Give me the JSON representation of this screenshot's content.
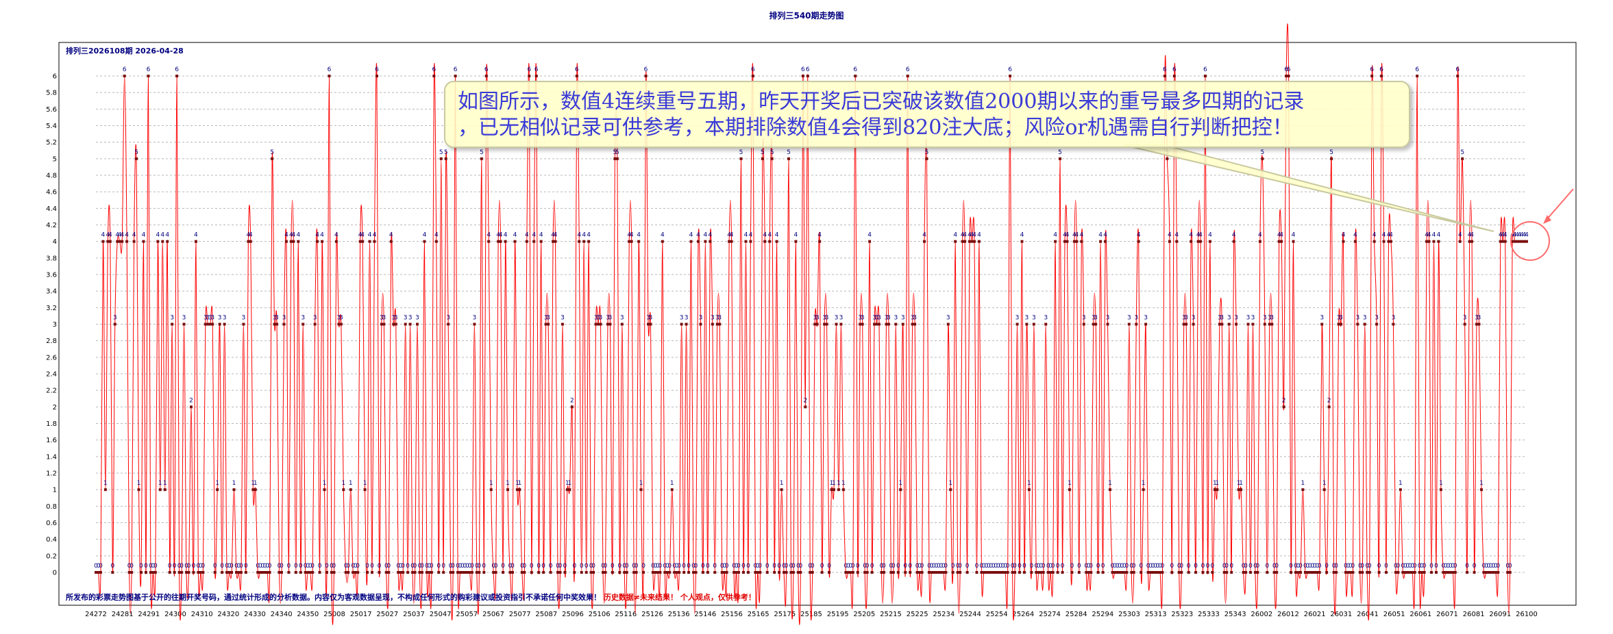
{
  "header": {
    "title": "排列三540期走势图",
    "subtitle": "排列三2026108期   2026-04-28"
  },
  "callout": {
    "line1": "如图所示，数值4连续重号五期，昨天开奖后已突破该数值2000期以来的重号最多四期的记录",
    "line2": "，已无相似记录可供参考，本期排除数值4会得到820注大底；风险or机遇需自行判断把控！"
  },
  "footer": {
    "disclaimer_blue": "所发布的彩票走势图基于公开的往期开奖号码，通过统计形成的分析数据。内容仅为客观数据呈现，不构成任何形式的购彩建议或投资指引不承诺任何中奖效果！",
    "disclaimer_red": "历史数据≠未来结果！ 个人观点，仅供参考！"
  },
  "colors": {
    "line": "#ff0000",
    "marker": "#7a1010",
    "value_label": "#000080",
    "highlight_circle": "#ff6a6a",
    "grid": "#b8b8b8"
  },
  "chart_data": {
    "type": "line",
    "title": "排列三540期走势图",
    "xlabel": "",
    "ylabel": "",
    "ylim": [
      0,
      6
    ],
    "yticks": [
      0,
      0.2,
      0.4,
      0.6,
      0.8,
      1,
      1.2,
      1.4,
      1.6,
      1.8,
      2,
      2.2,
      2.4,
      2.6,
      2.8,
      3,
      3.2,
      3.4,
      3.6,
      3.8,
      4,
      4.2,
      4.4,
      4.6,
      4.8,
      5,
      5.2,
      5.4,
      5.6,
      5.8,
      6
    ],
    "grid": true,
    "xtick_labels": [
      "24272",
      "24281",
      "24291",
      "24300",
      "24310",
      "24320",
      "24330",
      "24340",
      "24350",
      "25008",
      "25017",
      "25027",
      "25037",
      "25047",
      "25057",
      "25067",
      "25077",
      "25087",
      "25096",
      "25106",
      "25116",
      "25126",
      "25136",
      "25146",
      "25156",
      "25165",
      "25175",
      "25185",
      "25195",
      "25205",
      "25215",
      "25225",
      "25234",
      "25244",
      "25254",
      "25264",
      "25274",
      "25284",
      "25294",
      "25303",
      "25313",
      "25323",
      "25333",
      "25343",
      "26002",
      "26012",
      "26021",
      "26031",
      "26041",
      "26051",
      "26061",
      "26071",
      "26081",
      "26091",
      "26100"
    ],
    "point_count": 540,
    "values": [
      0,
      0,
      0,
      4,
      1,
      4,
      4,
      0,
      3,
      4,
      4,
      4,
      6,
      4,
      0,
      0,
      4,
      5,
      1,
      0,
      4,
      0,
      6,
      0,
      0,
      0,
      4,
      1,
      4,
      1,
      4,
      0,
      3,
      0,
      6,
      0,
      0,
      3,
      0,
      0,
      2,
      0,
      4,
      0,
      0,
      0,
      3,
      3,
      3,
      3,
      0,
      1,
      3,
      0,
      3,
      0,
      0,
      0,
      1,
      0,
      0,
      0,
      3,
      0,
      4,
      4,
      1,
      1,
      0,
      0,
      0,
      0,
      0,
      0,
      5,
      3,
      3,
      0,
      0,
      3,
      4,
      0,
      4,
      4,
      0,
      4,
      0,
      3,
      0,
      0,
      0,
      0,
      3,
      4,
      0,
      4,
      1,
      0,
      6,
      0,
      0,
      4,
      3,
      3,
      1,
      0,
      0,
      1,
      0,
      0,
      0,
      4,
      4,
      1,
      0,
      4,
      0,
      4,
      6,
      0,
      3,
      3,
      0,
      0,
      4,
      3,
      3,
      0,
      0,
      0,
      3,
      0,
      3,
      0,
      0,
      3,
      0,
      0,
      4,
      0,
      0,
      0,
      6,
      4,
      0,
      5,
      0,
      5,
      3,
      0,
      0,
      6,
      0,
      0,
      0,
      0,
      0,
      0,
      0,
      3,
      0,
      0,
      5,
      0,
      6,
      4,
      1,
      0,
      0,
      4,
      4,
      0,
      4,
      1,
      0,
      0,
      4,
      1,
      1,
      0,
      0,
      4,
      6,
      0,
      4,
      6,
      0,
      4,
      0,
      3,
      3,
      0,
      4,
      4,
      0,
      0,
      3,
      0,
      1,
      1,
      2,
      0,
      6,
      4,
      0,
      4,
      0,
      4,
      0,
      0,
      3,
      3,
      3,
      0,
      0,
      3,
      3,
      0,
      5,
      5,
      0,
      3,
      0,
      0,
      4,
      4,
      0,
      0,
      4,
      1,
      0,
      6,
      3,
      3,
      0,
      0,
      0,
      0,
      4,
      0,
      0,
      0,
      1,
      0,
      0,
      0,
      3,
      0,
      3,
      0,
      4,
      0,
      0,
      4,
      3,
      0,
      4,
      0,
      4,
      3,
      0,
      3,
      3,
      0,
      0,
      0,
      4,
      4,
      0,
      0,
      0,
      5,
      0,
      4,
      0,
      4,
      6,
      0,
      0,
      0,
      5,
      4,
      0,
      4,
      5,
      0,
      4,
      0,
      1,
      0,
      0,
      5,
      0,
      0,
      4,
      0,
      0,
      6,
      2,
      6,
      0,
      0,
      3,
      3,
      4,
      0,
      3,
      3,
      0,
      1,
      1,
      3,
      1,
      3,
      1,
      0,
      0,
      0,
      0,
      6,
      0,
      3,
      3,
      0,
      0,
      4,
      0,
      3,
      3,
      3,
      0,
      0,
      3,
      3,
      0,
      0,
      3,
      0,
      1,
      3,
      0,
      6,
      0,
      3,
      3,
      0,
      0,
      0,
      4,
      5,
      0,
      0,
      0,
      0,
      0,
      0,
      0,
      0,
      3,
      1,
      0,
      4,
      0,
      0,
      4,
      4,
      0,
      4,
      4,
      4,
      0,
      4,
      0,
      0,
      0,
      0,
      0,
      0,
      0,
      0,
      0,
      0,
      0,
      0,
      6,
      0,
      0,
      3,
      0,
      4,
      0,
      3,
      1,
      0,
      3,
      0,
      0,
      0,
      0,
      3,
      0,
      0,
      0,
      4,
      0,
      5,
      0,
      4,
      4,
      1,
      0,
      4,
      4,
      0,
      4,
      3,
      0,
      0,
      0,
      3,
      3,
      0,
      4,
      0,
      4,
      3,
      1,
      0,
      0,
      0,
      0,
      0,
      0,
      0,
      3,
      0,
      0,
      3,
      4,
      0,
      1,
      3,
      0,
      0,
      0,
      0,
      0,
      0,
      0,
      6,
      5,
      4,
      0,
      6,
      4,
      0,
      0,
      3,
      3,
      0,
      4,
      3,
      0,
      4,
      4,
      0,
      6,
      0,
      4,
      0,
      1,
      1,
      3,
      3,
      0,
      0,
      3,
      0,
      4,
      3,
      1,
      1,
      0,
      0,
      3,
      0,
      3,
      0,
      0,
      4,
      5,
      3,
      0,
      3,
      3,
      0,
      0,
      4,
      4,
      2,
      6,
      6,
      0,
      4,
      0,
      0,
      0,
      1,
      0,
      0,
      0,
      0,
      0,
      0,
      0,
      3,
      1,
      0,
      2,
      5,
      0,
      0,
      3,
      3,
      4,
      0,
      0,
      0,
      0,
      4,
      3,
      0,
      0,
      3,
      0,
      0,
      6,
      4,
      3,
      0,
      6,
      4,
      0,
      4,
      4,
      3,
      0,
      0,
      1,
      0,
      0,
      0,
      0,
      0,
      0,
      6,
      0,
      0,
      0,
      4,
      4,
      0,
      4,
      0,
      4,
      1,
      0,
      0,
      0,
      0,
      0,
      0,
      6,
      4,
      5,
      3,
      0,
      4,
      4,
      0,
      3,
      3,
      1,
      0,
      0,
      0,
      0,
      0,
      0,
      0,
      4,
      4,
      4,
      0,
      0,
      4,
      4,
      4,
      4,
      4,
      4,
      4
    ]
  }
}
